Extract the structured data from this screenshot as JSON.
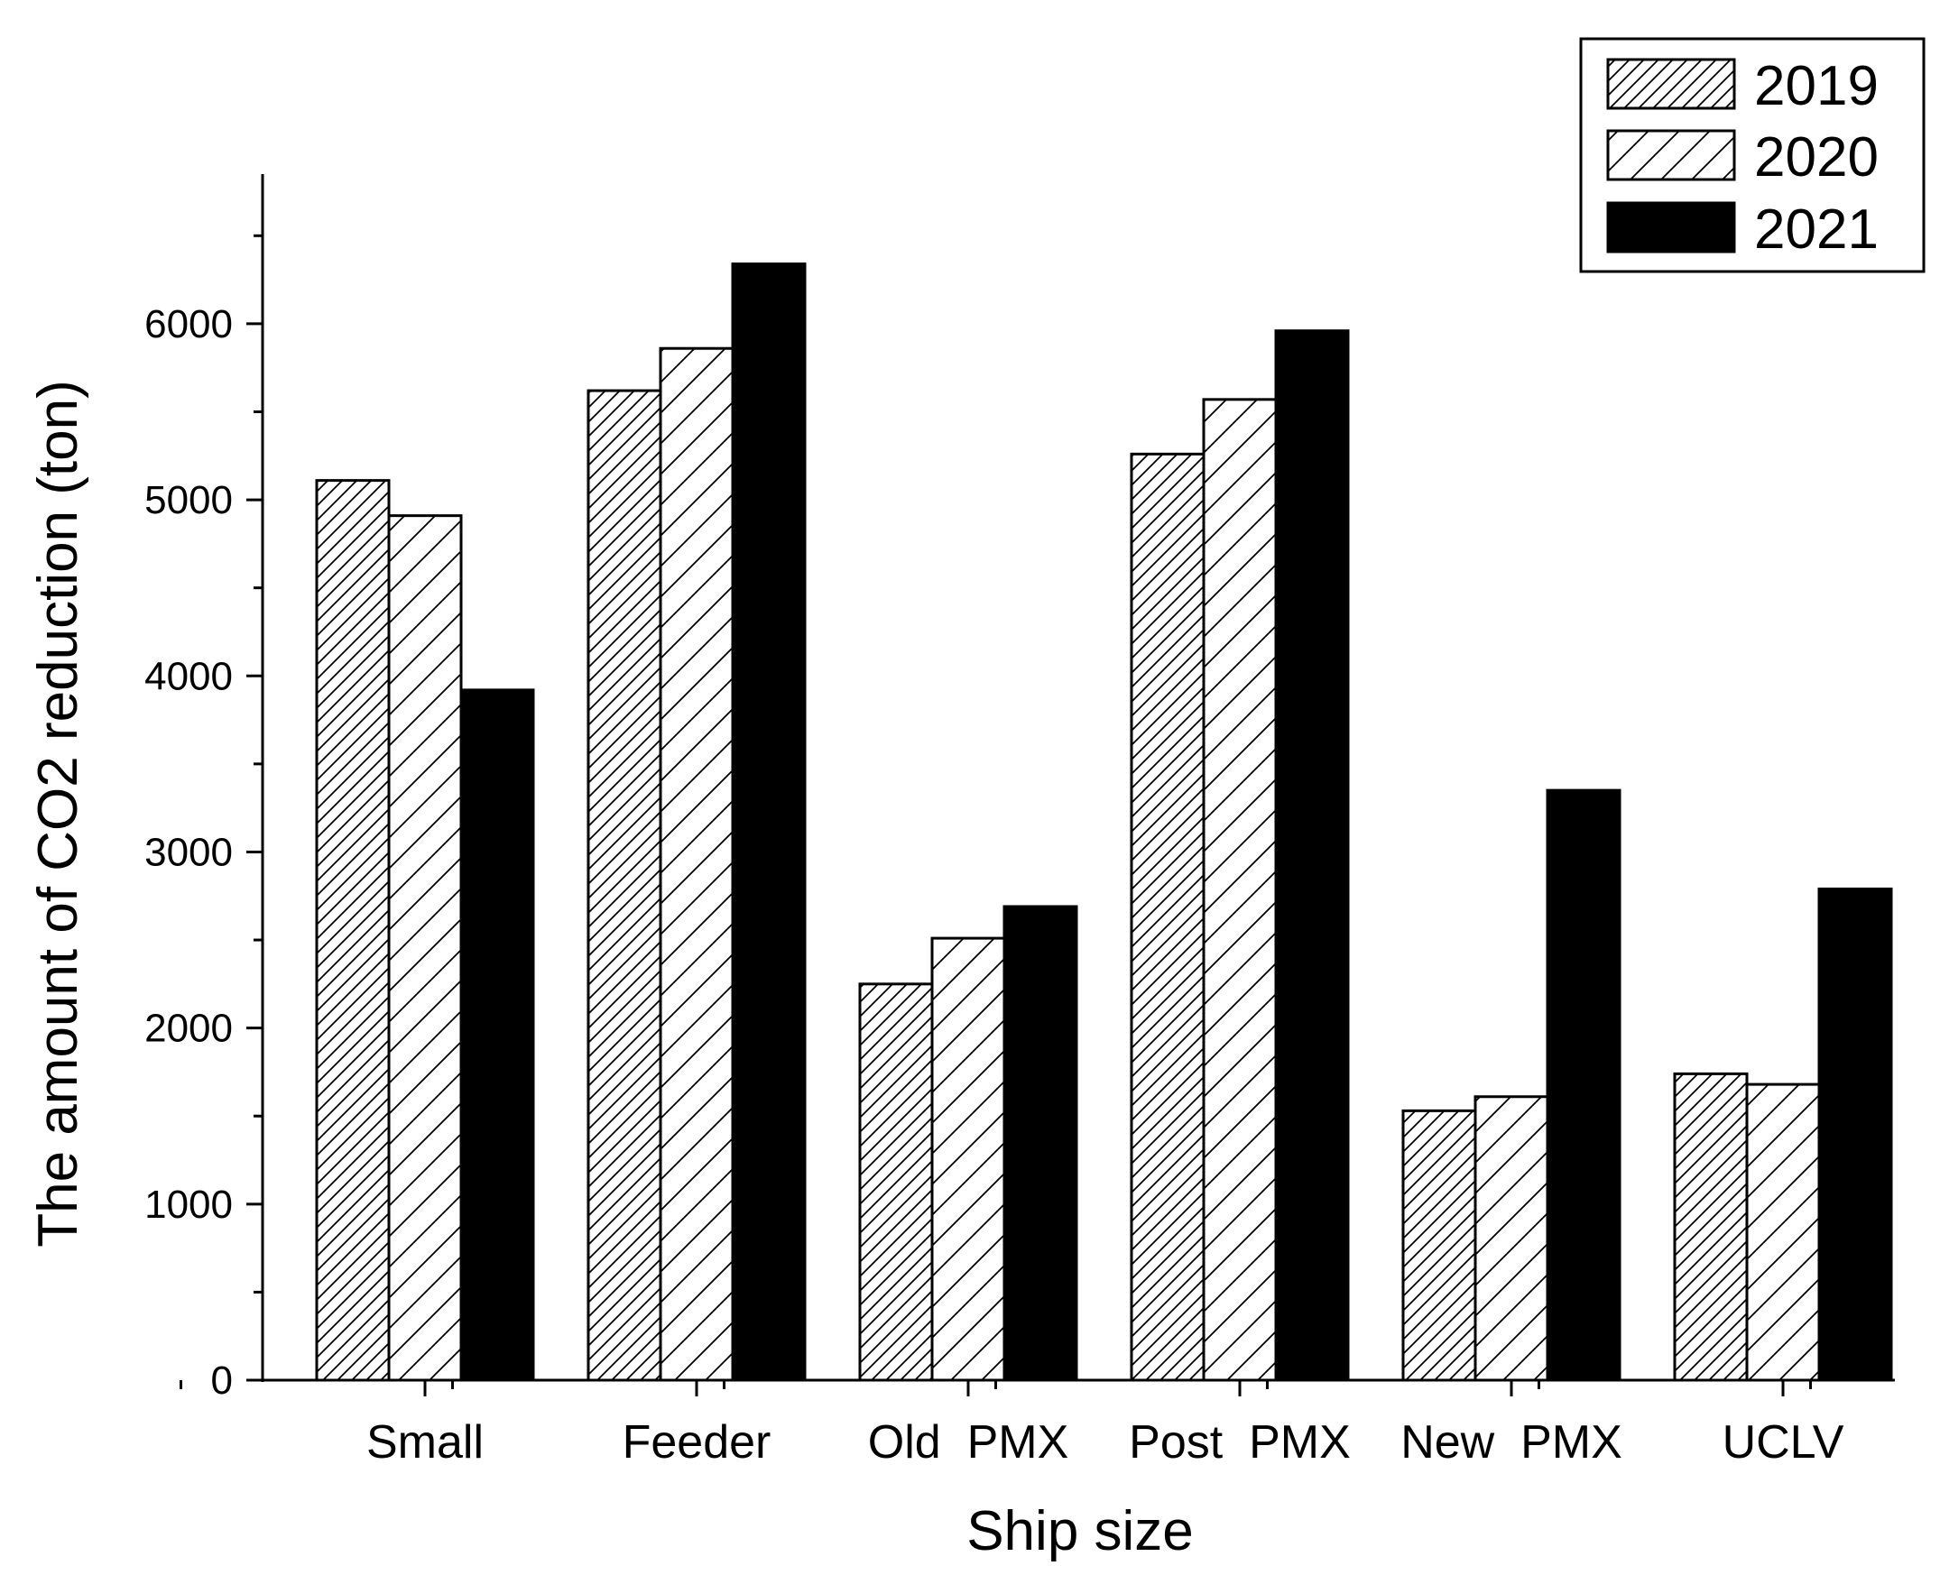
{
  "chart_data": {
    "type": "bar",
    "xlabel": "Ship size",
    "ylabel": "The amount of CO2 reduction (ton)",
    "categories": [
      "Small",
      "Feeder",
      "Old  PMX",
      "Post  PMX",
      "New  PMX",
      "UCLV"
    ],
    "series": [
      {
        "name": "2019",
        "values": [
          5110,
          5620,
          2250,
          5260,
          1530,
          1740
        ],
        "pattern": "dense-hatch"
      },
      {
        "name": "2020",
        "values": [
          4910,
          5860,
          2510,
          5570,
          1610,
          1680
        ],
        "pattern": "sparse-hatch"
      },
      {
        "name": "2021",
        "values": [
          3920,
          6340,
          2690,
          5960,
          3350,
          2790
        ],
        "pattern": "solid",
        "color": "#000000"
      }
    ],
    "ylim": [
      0,
      6850
    ],
    "yticks": [
      0,
      1000,
      2000,
      3000,
      4000,
      5000,
      6000
    ],
    "yminor_step": 500,
    "grid": false,
    "legend_position": "top-right"
  }
}
